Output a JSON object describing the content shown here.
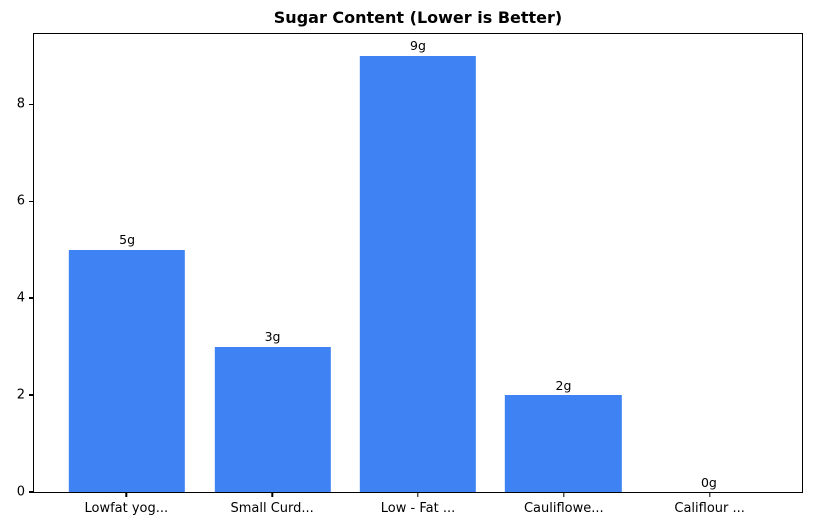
{
  "chart_data": {
    "type": "bar",
    "title": "Sugar Content (Lower is Better)",
    "categories": [
      "Lowfat yog...",
      "Small Curd...",
      "Low - Fat ...",
      "Cauliflowe...",
      "Califlour ..."
    ],
    "values": [
      5,
      3,
      9,
      2,
      0
    ],
    "bar_labels": [
      "5g",
      "3g",
      "9g",
      "2g",
      "0g"
    ],
    "xlabel": "",
    "ylabel": "",
    "yticks": [
      0,
      2,
      4,
      6,
      8
    ],
    "ylim": [
      0,
      9.45
    ],
    "bar_color": "#3e82f4",
    "bar_width_units": 0.8,
    "x_units_span": 5.28,
    "x_left_pad_units": 0.64,
    "grid": false,
    "legend_position": "none",
    "frame": "box",
    "axis_color": "#000000",
    "background_color": "#ffffff"
  }
}
